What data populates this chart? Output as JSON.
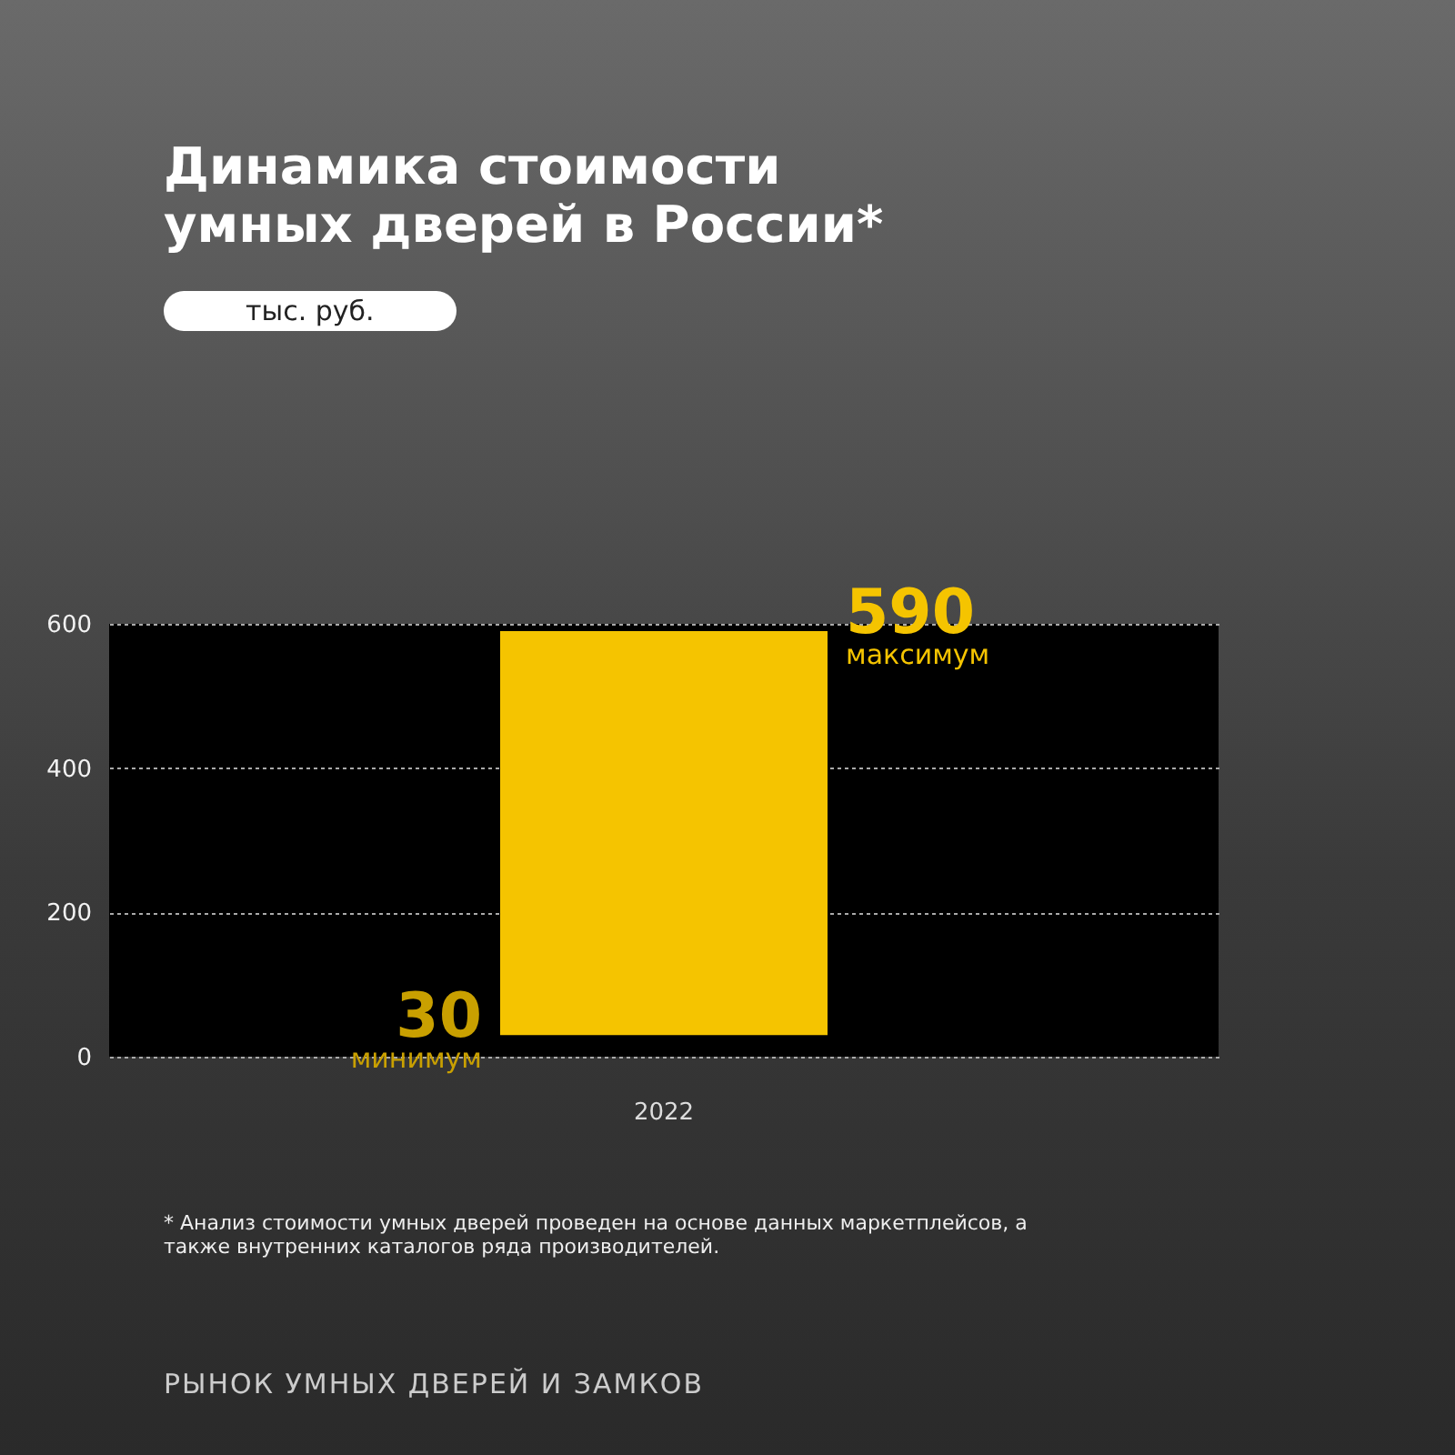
{
  "chart_data": {
    "type": "bar",
    "title": "Динамика стоимости умных дверей в России*",
    "categories": [
      "2022"
    ],
    "values": [
      560
    ],
    "base": [
      30
    ],
    "color": "#f5c400",
    "ylim": [
      0,
      600
    ],
    "yticks": [
      0,
      200,
      400,
      600
    ],
    "grid": "y",
    "annotations": [
      "тыс. руб.",
      {
        "text": "590",
        "x": "2022",
        "y": 590
      },
      "максимум",
      {
        "text": "30",
        "x": "2022",
        "y": 30
      },
      "минимум",
      "*  Анализ стоимости умных дверей проведен на основе данных маркетплейсов, а также внутренних каталогов ряда производителей.",
      "РЫНОК УМНЫХ ДВЕРЕЙ И ЗАМКОВ"
    ]
  }
}
